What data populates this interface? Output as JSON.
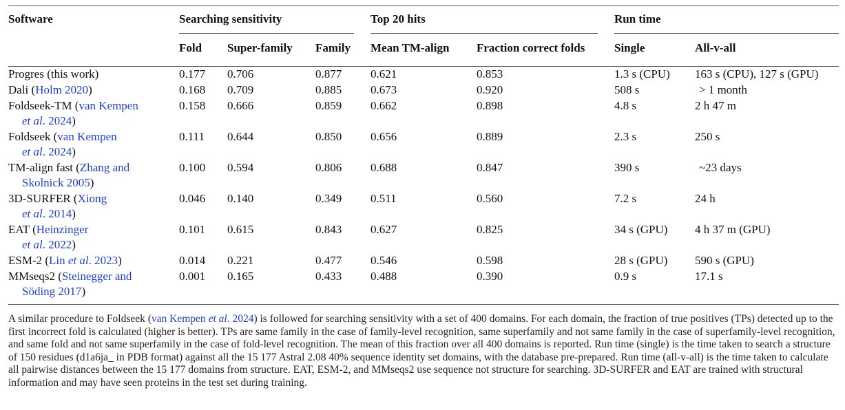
{
  "headers": {
    "software": "Software",
    "group_search": "Searching sensitivity",
    "group_top": "Top 20 hits",
    "group_run": "Run time",
    "fold": "Fold",
    "superfamily": "Super-family",
    "family": "Family",
    "mean_tm": "Mean TM-align",
    "fraction": "Fraction correct folds",
    "single": "Single",
    "allvall": "All-v-all"
  },
  "rows": [
    {
      "name1": "Progres (this work)",
      "fold": "0.177",
      "superfamily": "0.706",
      "family": "0.877",
      "mean_tm": "0.621",
      "fraction": "0.853",
      "single": "1.3 s (CPU)",
      "allvall": "163 s (CPU), 127 s (GPU)"
    },
    {
      "name1": "Dali (",
      "link1": "Holm 2020",
      "end1": ")",
      "fold": "0.168",
      "superfamily": "0.709",
      "family": "0.885",
      "mean_tm": "0.673",
      "fraction": "0.920",
      "single": "508 s",
      "allvall": "> 1 month"
    },
    {
      "name1": "Foldseek-TM (",
      "link1": "van Kempen",
      "link2a": "et al",
      "link2b": ". 2024",
      "end2": ")",
      "fold": "0.158",
      "superfamily": "0.666",
      "family": "0.859",
      "mean_tm": "0.662",
      "fraction": "0.898",
      "single": "4.8 s",
      "allvall": "2 h 47 m"
    },
    {
      "name1": "Foldseek (",
      "link1": "van Kempen",
      "link2a": "et al",
      "link2b": ". 2024",
      "end2": ")",
      "fold": "0.111",
      "superfamily": "0.644",
      "family": "0.850",
      "mean_tm": "0.656",
      "fraction": "0.889",
      "single": "2.3 s",
      "allvall": "250 s"
    },
    {
      "name1": "TM-align fast (",
      "link1": "Zhang and",
      "link2b": "Skolnick 2005",
      "end2": ")",
      "fold": "0.100",
      "superfamily": "0.594",
      "family": "0.806",
      "mean_tm": "0.688",
      "fraction": "0.847",
      "single": "390 s",
      "allvall": "~23 days"
    },
    {
      "name1": "3D-SURFER (",
      "link1": "Xiong",
      "link2a": "et al",
      "link2b": ". 2014",
      "end2": ")",
      "fold": "0.046",
      "superfamily": "0.140",
      "family": "0.349",
      "mean_tm": "0.511",
      "fraction": "0.560",
      "single": "7.2 s",
      "allvall": "24 h"
    },
    {
      "name1": "EAT (",
      "link1": "Heinzinger",
      "link2a": "et al",
      "link2b": ". 2022",
      "end2": ")",
      "fold": "0.101",
      "superfamily": "0.615",
      "family": "0.843",
      "mean_tm": "0.627",
      "fraction": "0.825",
      "single": "34 s (GPU)",
      "allvall": "4 h 37 m (GPU)"
    },
    {
      "name1": "ESM-2 (",
      "link1": "Lin ",
      "link1i": "et al",
      "link1c": ". 2023",
      "end1": ")",
      "fold": "0.014",
      "superfamily": "0.221",
      "family": "0.477",
      "mean_tm": "0.546",
      "fraction": "0.598",
      "single": "28 s (GPU)",
      "allvall": "590 s (GPU)"
    },
    {
      "name1": "MMseqs2 (",
      "link1": "Steinegger and",
      "link2b": "Söding 2017",
      "end2": ")",
      "fold": "0.001",
      "superfamily": "0.165",
      "family": "0.433",
      "mean_tm": "0.488",
      "fraction": "0.390",
      "single": "0.9 s",
      "allvall": "17.1 s"
    }
  ],
  "caption": {
    "p1": "A similar procedure to Foldseek (",
    "link": "van Kempen ",
    "link_i": "et al",
    "link_c": ". 2024",
    "p2": ") is followed for searching sensitivity with a set of 400 domains. For each domain, the fraction of true positives (TPs) detected up to the first incorrect fold is calculated (higher is better). TPs are same family in the case of family-level recognition, same superfamily and not same family in the case of superfamily-level recognition, and same fold and not same superfamily in the case of fold-level recognition. The mean of this fraction over all 400 domains is reported. Run time (single) is the time taken to search a structure of 150 residues (d1a6ja_ in PDB format) against all the 15 177 Astral 2.08 40% sequence identity set domains, with the database pre-prepared. Run time (all-v-all) is the time taken to calculate all pairwise distances between the 15 177 domains from structure. EAT, ESM-2, and MMseqs2 use sequence not structure for searching. 3D-SURFER and EAT are trained with structural information and may have seen proteins in the test set during training."
  },
  "colors": {
    "link": "#1c3fd6",
    "rule": "#555555"
  }
}
